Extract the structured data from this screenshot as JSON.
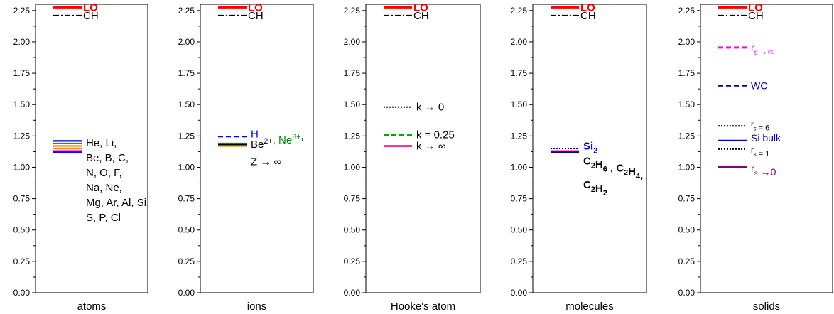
{
  "chart_data": [
    {
      "type": "line",
      "xlabel": "atoms",
      "ylim": [
        0,
        2.3
      ],
      "yticks": [
        "0.00",
        "0.25",
        "0.50",
        "0.75",
        "1.00",
        "1.25",
        "1.50",
        "1.75",
        "2.00",
        "2.25"
      ],
      "grid": false,
      "series": [
        {
          "name": "LO",
          "y": 2.275,
          "color": "#ff0000",
          "dash": "solid",
          "width": 3,
          "label_color": "#ff0000",
          "label_bold": true
        },
        {
          "name": "CH",
          "y": 2.21,
          "color": "#000000",
          "dash": "dashdot",
          "width": 2,
          "label_color": "#000000"
        },
        {
          "name": "He, Li, Be, B, C, N, O, F, Na, Ne, Mg, Ar, Al, Si, S, P, Cl",
          "values": [
            1.21,
            1.19,
            1.17,
            1.15,
            1.13,
            1.12
          ],
          "colors": [
            "#0000cc",
            "#00aa00",
            "#cc9900",
            "#ff8800",
            "#ff00ff",
            "#0000ff"
          ]
        }
      ],
      "annotations": [
        {
          "lines": [
            "He, Li,",
            "Be, B, C,",
            "N, O, F,",
            "Na, Ne,",
            "Mg, Ar, Al, Si,",
            "S, P, Cl"
          ],
          "y": 1.195,
          "color": "#000000"
        }
      ]
    },
    {
      "type": "line",
      "xlabel": "ions",
      "ylim": [
        0,
        2.3
      ],
      "yticks": [
        "0.00",
        "0.25",
        "0.50",
        "0.75",
        "1.00",
        "1.25",
        "1.50",
        "1.75",
        "2.00",
        "2.25"
      ],
      "grid": false,
      "series": [
        {
          "name": "LO",
          "y": 2.275,
          "color": "#ff0000",
          "dash": "solid",
          "width": 3,
          "label_color": "#ff0000",
          "label_bold": true
        },
        {
          "name": "CH",
          "y": 2.21,
          "color": "#000000",
          "dash": "dashdot",
          "width": 2,
          "label_color": "#000000"
        },
        {
          "name": "H-",
          "y": 1.245,
          "color": "#0000ff",
          "dash": "dash",
          "width": 2
        },
        {
          "name": "Be2+, Ne8+, Z → ∞",
          "values": [
            1.19,
            1.18,
            1.17
          ],
          "colors": [
            "#008800",
            "#000000",
            "#cc9900"
          ]
        }
      ],
      "annotations": [
        {
          "base": "H",
          "sup": "-",
          "y": 1.265,
          "color": "#0000ff"
        },
        {
          "parts": [
            {
              "base": "Be",
              "sup": "2+",
              "color": "#000000"
            },
            {
              "base": ", ",
              "color": "#000000"
            },
            {
              "base": "Ne",
              "sup": "8+",
              "color": "#008800"
            },
            {
              "base": ",",
              "color": "#000000"
            }
          ],
          "y": 1.185
        },
        {
          "text": "Z → ∞",
          "y": 1.045,
          "color": "#000000"
        }
      ]
    },
    {
      "type": "line",
      "xlabel": "Hooke's atom",
      "ylim": [
        0,
        2.3
      ],
      "yticks": [
        "0.00",
        "0.25",
        "0.50",
        "0.75",
        "1.00",
        "1.25",
        "1.50",
        "1.75",
        "2.00",
        "2.25"
      ],
      "grid": false,
      "series": [
        {
          "name": "LO",
          "y": 2.275,
          "color": "#ff0000",
          "dash": "solid",
          "width": 3,
          "label_color": "#ff0000",
          "label_bold": true
        },
        {
          "name": "CH",
          "y": 2.21,
          "color": "#000000",
          "dash": "dashdot",
          "width": 2,
          "label_color": "#000000"
        },
        {
          "name": "k → 0",
          "y": 1.48,
          "color": "#0000cc",
          "dash": "dot",
          "width": 2
        },
        {
          "name": "k = 0.25",
          "y": 1.26,
          "color": "#00aa00",
          "dash": "dash",
          "width": 3
        },
        {
          "name": "k → ∞",
          "y": 1.17,
          "color": "#ff3399",
          "dash": "solid",
          "width": 3
        }
      ],
      "annotations": [
        {
          "text": "k → 0",
          "y": 1.48,
          "color": "#000000"
        },
        {
          "text": "k = 0.25",
          "y": 1.26,
          "color": "#000000"
        },
        {
          "text": "k → ∞",
          "y": 1.17,
          "color": "#000000"
        }
      ]
    },
    {
      "type": "line",
      "xlabel": "molecules",
      "ylim": [
        0,
        2.3
      ],
      "yticks": [
        "0.00",
        "0.25",
        "0.50",
        "0.75",
        "1.00",
        "1.25",
        "1.50",
        "1.75",
        "2.00",
        "2.25"
      ],
      "grid": false,
      "series": [
        {
          "name": "LO",
          "y": 2.275,
          "color": "#ff0000",
          "dash": "solid",
          "width": 3,
          "label_color": "#ff0000",
          "label_bold": true
        },
        {
          "name": "CH",
          "y": 2.21,
          "color": "#000000",
          "dash": "dashdot",
          "width": 2,
          "label_color": "#000000"
        },
        {
          "name": "Si2",
          "y": 1.15,
          "color": "#000099",
          "dash": "dot",
          "width": 2
        },
        {
          "name": "C2H6, C2H4, C2H2",
          "values": [
            1.13,
            1.12
          ],
          "colors": [
            "#ff3399",
            "#000099"
          ]
        }
      ],
      "annotations": [
        {
          "parts": [
            {
              "base": "Si",
              "sub": "2",
              "color": "#0000cc"
            }
          ],
          "y": 1.17,
          "bold": true
        },
        {
          "parts": [
            {
              "base": "C",
              "sub": "2",
              "color": "#000000"
            },
            {
              "base": "H",
              "sub": "6",
              "color": "#000000"
            },
            {
              "base": " , ",
              "color": "#000000"
            },
            {
              "base": "C",
              "sub": "2",
              "color": "#000000"
            },
            {
              "base": "H",
              "sub": "4",
              "color": "#000000"
            },
            {
              "base": ",",
              "color": "#000000"
            }
          ],
          "y": 1.05,
          "bold": true
        },
        {
          "parts": [
            {
              "base": "C",
              "sub": "2",
              "color": "#000000"
            },
            {
              "base": "H",
              "sub": "2",
              "color": "#000000"
            }
          ],
          "y": 0.86,
          "bold": true
        }
      ]
    },
    {
      "type": "line",
      "xlabel": "solids",
      "ylim": [
        0,
        2.3
      ],
      "yticks": [
        "0.00",
        "0.25",
        "0.50",
        "0.75",
        "1.00",
        "1.25",
        "1.50",
        "1.75",
        "2.00",
        "2.25"
      ],
      "grid": false,
      "series": [
        {
          "name": "LO",
          "y": 2.275,
          "color": "#ff0000",
          "dash": "solid",
          "width": 3,
          "label_color": "#ff0000",
          "label_bold": true
        },
        {
          "name": "CH",
          "y": 2.21,
          "color": "#000000",
          "dash": "dashdot",
          "width": 2,
          "label_color": "#000000"
        },
        {
          "name": "rs → ∞",
          "y": 1.955,
          "color": "#ff00ff",
          "dash": "dash",
          "width": 3
        },
        {
          "name": "WC",
          "y": 1.65,
          "color": "#0000aa",
          "dash": "dash",
          "width": 2
        },
        {
          "name": "rs = 6",
          "y": 1.33,
          "color": "#000000",
          "dash": "dot",
          "width": 2
        },
        {
          "name": "Si bulk",
          "y": 1.215,
          "color": "#0000cc",
          "dash": "solid",
          "width": 1.5
        },
        {
          "name": "rs = 1",
          "y": 1.145,
          "color": "#000000",
          "dash": "dot",
          "width": 2
        },
        {
          "name": "rs → 0",
          "y": 1.0,
          "color": "#800080",
          "dash": "solid",
          "width": 3
        }
      ],
      "annotations": [
        {
          "parts": [
            {
              "base": "r",
              "sub": "s",
              "color": "#ff00ff"
            },
            {
              "base": "→∞",
              "color": "#ff00ff"
            }
          ],
          "y": 1.955,
          "size": 14
        },
        {
          "parts": [
            {
              "base": "WC",
              "color": "#0000aa"
            }
          ],
          "y": 1.65,
          "size": 14
        },
        {
          "parts": [
            {
              "base": "r",
              "sub": "s",
              "color": "#000000"
            },
            {
              "base": " = 6",
              "color": "#000000"
            }
          ],
          "y": 1.35,
          "size": 11
        },
        {
          "parts": [
            {
              "base": "Si bulk",
              "color": "#0000cc"
            }
          ],
          "y": 1.235,
          "size": 14
        },
        {
          "parts": [
            {
              "base": "r",
              "sub": "s",
              "color": "#000000"
            },
            {
              "base": " = 1",
              "color": "#000000"
            }
          ],
          "y": 1.145,
          "size": 11
        },
        {
          "parts": [
            {
              "base": "r",
              "sub": "s",
              "color": "#800080"
            },
            {
              "base": " →0",
              "color": "#800080"
            }
          ],
          "y": 0.99,
          "size": 14
        }
      ]
    }
  ]
}
